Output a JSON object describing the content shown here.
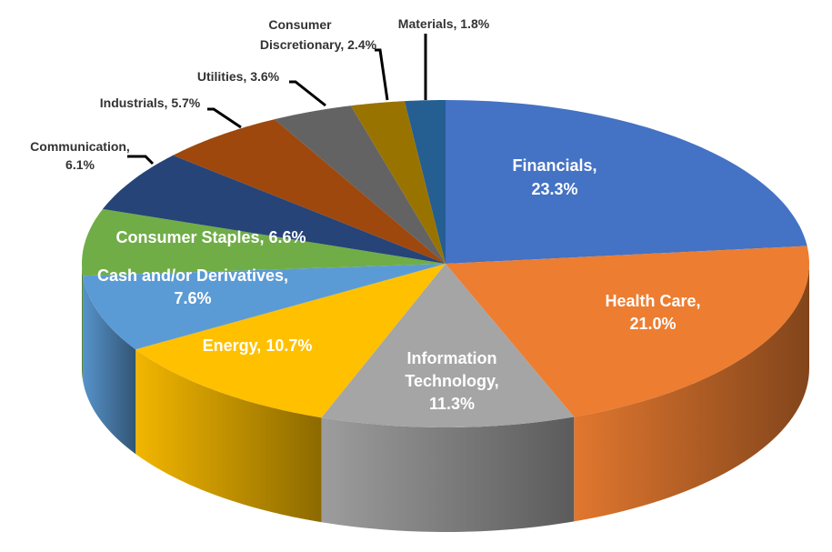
{
  "chart_data": {
    "type": "pie",
    "style": "3d",
    "title": "",
    "slices": [
      {
        "label": "Financials",
        "value": 23.3,
        "display": "23.3%",
        "color": "#4472C4"
      },
      {
        "label": "Health Care",
        "value": 21.0,
        "display": "21.0%",
        "color": "#ED7D31"
      },
      {
        "label": "Information Technology",
        "value": 11.3,
        "display": "11.3%",
        "color": "#A5A5A5"
      },
      {
        "label": "Energy",
        "value": 10.7,
        "display": "10.7%",
        "color": "#FFC000"
      },
      {
        "label": "Cash and/or Derivatives",
        "value": 7.6,
        "display": "7.6%",
        "color": "#5B9BD5"
      },
      {
        "label": "Consumer Staples",
        "value": 6.6,
        "display": "6.6%",
        "color": "#70AD47"
      },
      {
        "label": "Communication",
        "value": 6.1,
        "display": "6.1%",
        "color": "#264478"
      },
      {
        "label": "Industrials",
        "value": 5.7,
        "display": "5.7%",
        "color": "#9E480E"
      },
      {
        "label": "Utilities",
        "value": 3.6,
        "display": "3.6%",
        "color": "#636363"
      },
      {
        "label": "Consumer Discretionary",
        "value": 2.4,
        "display": "2.4%",
        "color": "#997300"
      },
      {
        "label": "Materials",
        "value": 1.8,
        "display": "1.8%",
        "color": "#255E91"
      }
    ]
  }
}
